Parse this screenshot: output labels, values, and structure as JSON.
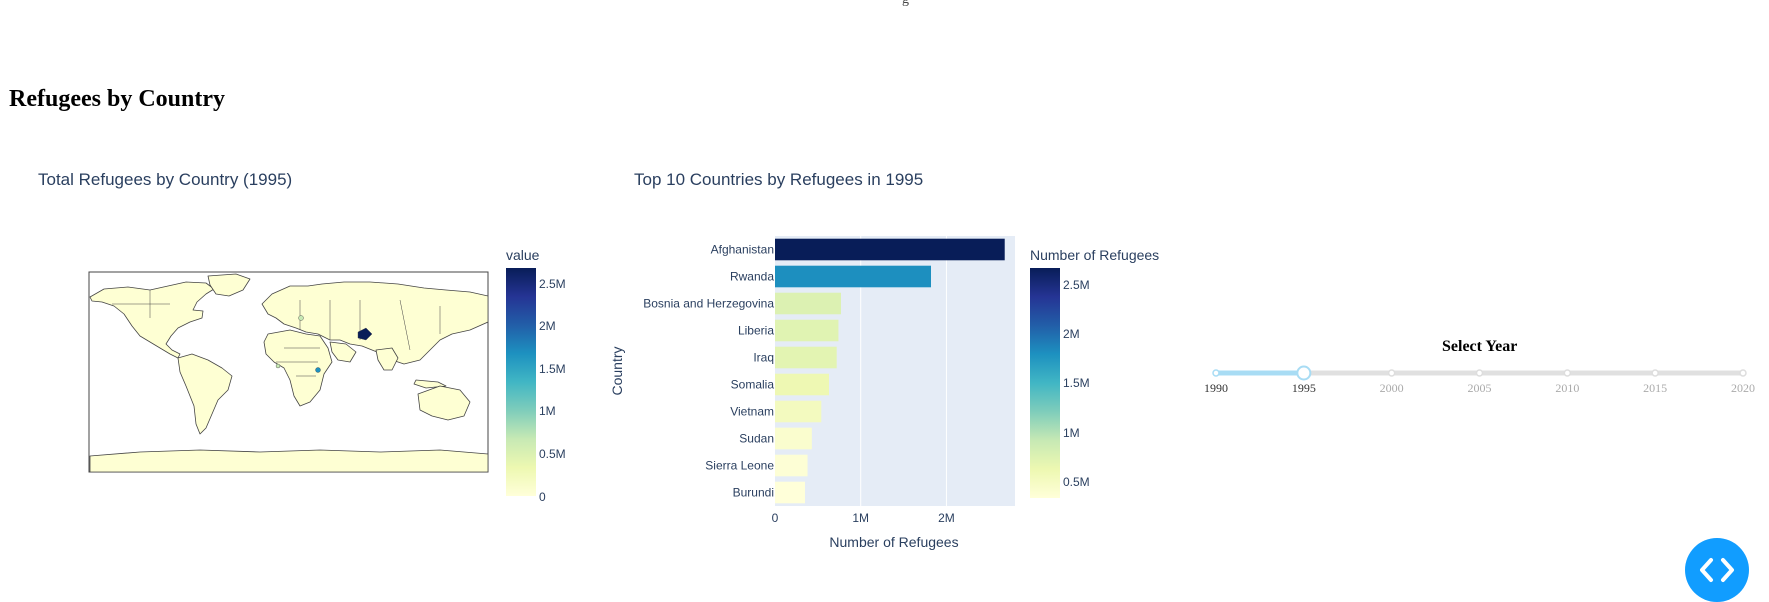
{
  "page": {
    "heading": "Refugees by Country",
    "top_cut_text": "g"
  },
  "map": {
    "title": "Total Refugees by Country (1995)",
    "colorbar_title": "value",
    "colorbar_ticks": [
      "2.5M",
      "2M",
      "1.5M",
      "1M",
      "0.5M",
      "0"
    ],
    "colorscale": "YlGnBu",
    "highlight_color": "#081d58"
  },
  "chart_data": {
    "type": "bar",
    "orientation": "horizontal",
    "title": "Top 10 Countries by Refugees in 1995",
    "xlabel": "Number of Refugees",
    "ylabel": "Country",
    "categories": [
      "Afghanistan",
      "Rwanda",
      "Bosnia and Herzegovina",
      "Liberia",
      "Iraq",
      "Somalia",
      "Vietnam",
      "Sudan",
      "Sierra Leone",
      "Burundi"
    ],
    "values": [
      2680000,
      1820000,
      770000,
      740000,
      720000,
      630000,
      540000,
      430000,
      380000,
      350000
    ],
    "xlim": [
      0,
      2800000
    ],
    "x_ticks": [
      0,
      1000000,
      2000000
    ],
    "x_tick_labels": [
      "0",
      "1M",
      "2M"
    ],
    "colorbar_title": "Number of Refugees",
    "colorbar_ticks": [
      "2.5M",
      "2M",
      "1.5M",
      "1M",
      "0.5M"
    ],
    "colorscale": "YlGnBu",
    "plot_bgcolor": "#E5ECF6",
    "grid": true
  },
  "slider": {
    "title": "Select Year",
    "years": [
      "1990",
      "1995",
      "2000",
      "2005",
      "2010",
      "2015",
      "2020"
    ],
    "selected": "1995",
    "accent": "#119DFF"
  },
  "fab": {
    "icon": "code-brackets-icon"
  }
}
